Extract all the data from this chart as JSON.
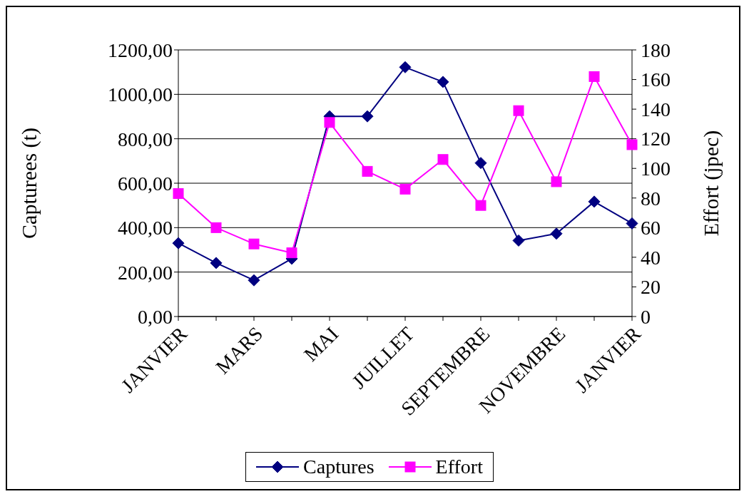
{
  "chart_data": {
    "type": "line",
    "ylabel": "Capturees (t)",
    "y2label": "Effort (jpec)",
    "categories": [
      "JANVIER",
      null,
      "MARS",
      null,
      "MAI",
      null,
      "JUILLET",
      null,
      "SEPTEMBRE",
      null,
      "NOVEMBRE",
      null,
      "JANVIER"
    ],
    "series": [
      {
        "name": "Captures",
        "color": "#000080",
        "marker": "diamond",
        "values": [
          330,
          241,
          163,
          260,
          901,
          901,
          1122,
          1056,
          691,
          342,
          373,
          517,
          419
        ]
      },
      {
        "name": "Effort",
        "color": "#ff00ff",
        "marker": "square",
        "axis": "y2",
        "values": [
          83,
          60,
          49,
          43,
          131,
          98,
          86,
          106,
          75,
          139,
          91,
          162,
          116
        ]
      }
    ],
    "ylim": [
      0,
      1200
    ],
    "yticks": [
      {
        "value": 0,
        "label": "0,00"
      },
      {
        "value": 200,
        "label": "200,00"
      },
      {
        "value": 400,
        "label": "400,00"
      },
      {
        "value": 600,
        "label": "600,00"
      },
      {
        "value": 800,
        "label": "800,00"
      },
      {
        "value": 1000,
        "label": "1000,00"
      },
      {
        "value": 1200,
        "label": "1200,00"
      }
    ],
    "y2lim": [
      0,
      180
    ],
    "y2ticks": [
      0,
      20,
      40,
      60,
      80,
      100,
      120,
      140,
      160,
      180
    ],
    "grid": "y",
    "legend": "bottom"
  }
}
